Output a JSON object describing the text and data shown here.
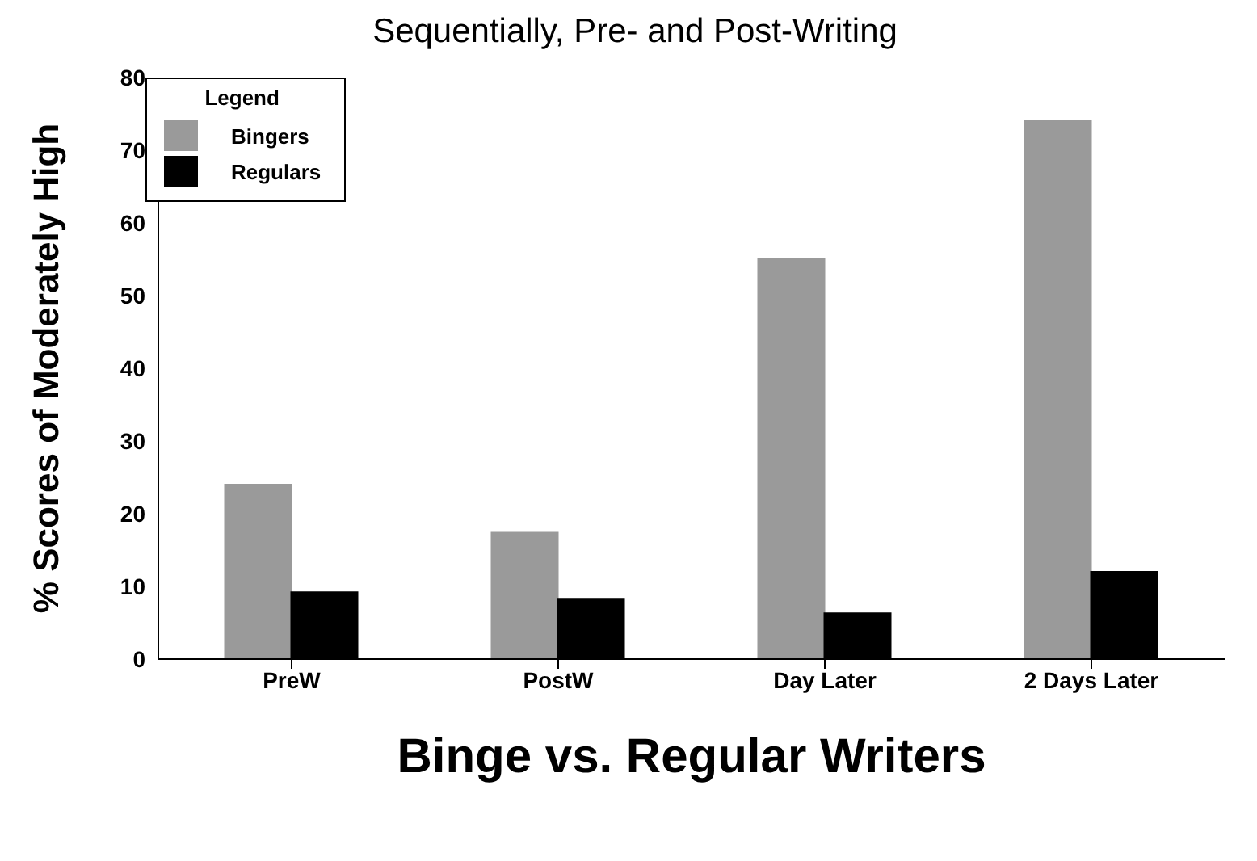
{
  "chart_data": {
    "type": "bar",
    "title": "Sequentially, Pre- and Post-Writing",
    "xlabel": "Binge vs. Regular Writers",
    "ylabel": "% Scores of Moderately High",
    "legend_title": "Legend",
    "categories": [
      "PreW",
      "PostW",
      "Day Later",
      "2 Days Later"
    ],
    "series": [
      {
        "name": "Bingers",
        "color": "#9a9a9a",
        "values": [
          24,
          17.4,
          55,
          74
        ]
      },
      {
        "name": "Regulars",
        "color": "#000000",
        "values": [
          9.2,
          8.3,
          6.3,
          12
        ]
      }
    ],
    "ylim": [
      0,
      80
    ],
    "yticks": [
      0,
      10,
      20,
      30,
      40,
      50,
      60,
      70,
      80
    ],
    "legend": "top left"
  }
}
